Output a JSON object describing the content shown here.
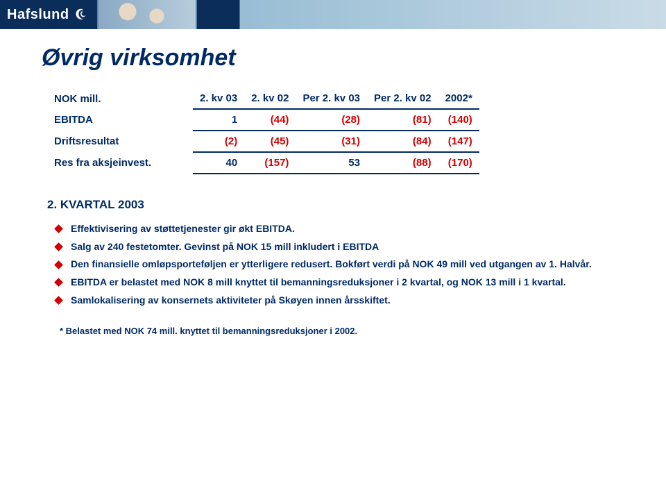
{
  "brand": {
    "name": "Hafslund"
  },
  "title": "Øvrig virksomhet",
  "colors": {
    "primary_text": "#002a65",
    "negative": "#d10000",
    "bullet": "#d10000",
    "rule": "#002a65",
    "bg": "#ffffff",
    "topbar_dark": "#0a2d5a",
    "topbar_light": "#c9dbe7"
  },
  "table": {
    "header_label": "NOK mill.",
    "columns": [
      "2. kv 03",
      "2. kv 02",
      "Per 2. kv 03",
      "Per 2. kv 02",
      "2002*"
    ],
    "rows": [
      {
        "label": "EBITDA",
        "values": [
          "1",
          "(44)",
          "(28)",
          "(81)",
          "(140)"
        ],
        "neg": [
          false,
          true,
          true,
          true,
          true
        ]
      },
      {
        "label": "Driftsresultat",
        "values": [
          "(2)",
          "(45)",
          "(31)",
          "(84)",
          "(147)"
        ],
        "neg": [
          true,
          true,
          true,
          true,
          true
        ]
      },
      {
        "label": "Res fra aksjeinvest.",
        "values": [
          "40",
          "(157)",
          "53",
          "(88)",
          "(170)"
        ],
        "neg": [
          false,
          true,
          false,
          true,
          true
        ]
      }
    ]
  },
  "section": {
    "heading": "2. KVARTAL 2003",
    "bullets": [
      "Effektivisering av støttetjenester gir økt EBITDA.",
      "Salg av 240 festetomter. Gevinst på NOK 15 mill inkludert i EBITDA",
      "Den finansielle omløpsporteføljen er ytterligere redusert. Bokført verdi på NOK 49 mill ved utgangen av 1. Halvår.",
      "EBITDA er belastet med NOK 8 mill knyttet til bemanningsreduksjoner i 2 kvartal, og NOK 13 mill i 1 kvartal.",
      "Samlokalisering av konsernets aktiviteter på Skøyen innen årsskiftet."
    ],
    "footnote": "* Belastet med NOK 74 mill. knyttet til bemanningsreduksjoner i 2002."
  }
}
